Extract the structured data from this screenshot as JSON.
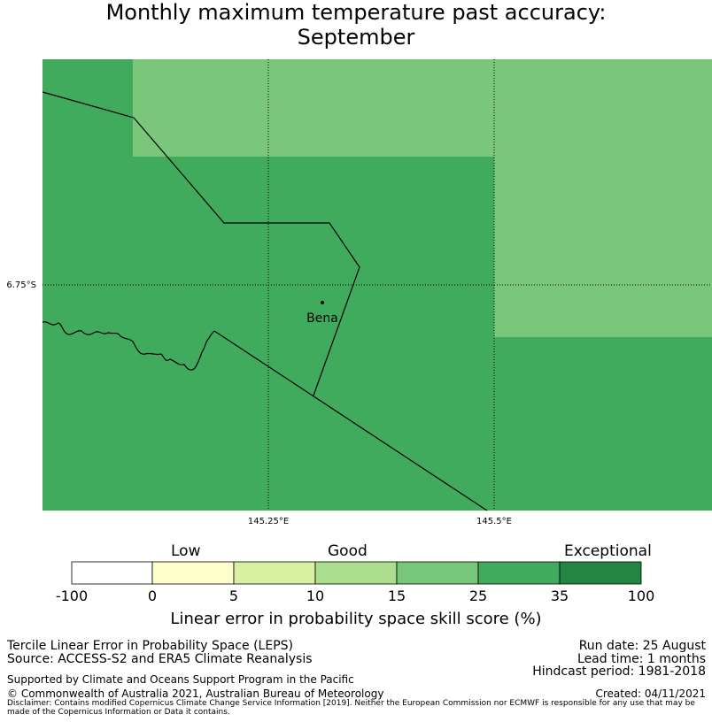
{
  "title": {
    "line1": "Monthly maximum temperature past accuracy:",
    "line2": "September"
  },
  "map": {
    "lat_labels": [
      "6.75°S"
    ],
    "lon_labels": [
      "145.25°E",
      "145.5°E"
    ],
    "place_label": "Bena",
    "grid_colors": {
      "good": "#7ac67b",
      "very_good": "#41ab5d"
    }
  },
  "colorbar": {
    "category_labels": {
      "low": "Low",
      "good": "Good",
      "exceptional": "Exceptional"
    },
    "ticks": [
      "-100",
      "0",
      "5",
      "10",
      "15",
      "25",
      "35",
      "100"
    ],
    "colors": [
      "#ffffff",
      "#ffffcc",
      "#d9f0a3",
      "#addd8e",
      "#78c679",
      "#41ab5d",
      "#238443"
    ],
    "title": "Linear error in probability space skill score (%)"
  },
  "footer": {
    "left1": "Tercile Linear Error in Probability Space (LEPS)",
    "left2": "Source: ACCESS-S2 and ERA5 Climate Reanalysis",
    "support": "Supported by Climate and Oceans Support Program in the Pacific",
    "copyright": "© Commonwealth of Australia 2021, Australian Bureau of Meteorology",
    "run_date": "Run date: 25 August",
    "lead_time": "Lead time: 1 months",
    "hindcast": "Hindcast period: 1981-2018",
    "created": "Created: 04/11/2021",
    "disclaimer": "Disclaimer: Contains modified Copernicus Climate Change Service Information [2019]. Neither the European Commission nor ECMWF is responsible for any use that may be made of the Copernicus Information or Data it contains."
  }
}
